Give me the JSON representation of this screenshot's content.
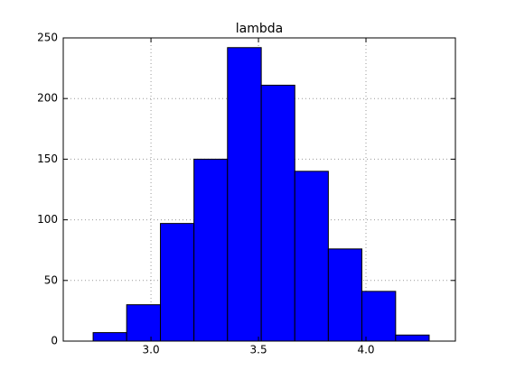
{
  "chart_data": {
    "type": "histogram",
    "title": "lambda",
    "bins": [
      2.731,
      2.887,
      3.044,
      3.2,
      3.356,
      3.513,
      3.669,
      3.825,
      3.981,
      4.138,
      4.294
    ],
    "values": [
      7,
      30,
      97,
      150,
      242,
      211,
      140,
      76,
      41,
      5
    ],
    "color": "#0000ff",
    "xlim": [
      2.592,
      4.416
    ],
    "xticks": [
      {
        "value": 3,
        "label": "3.0"
      },
      {
        "value": 3.5,
        "label": "3.5"
      },
      {
        "value": 4,
        "label": "4.0"
      }
    ],
    "ylim": [
      0,
      250
    ],
    "yticks": [
      0,
      50,
      100,
      150,
      200,
      250
    ],
    "grid": true
  }
}
